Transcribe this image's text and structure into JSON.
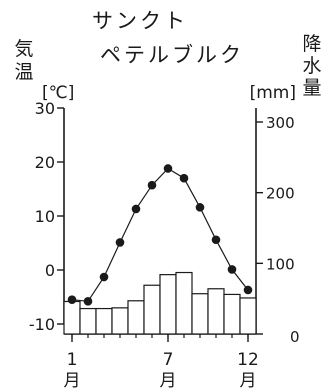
{
  "chart_data": {
    "type": "bar+line",
    "title_lines": [
      "サンクト",
      "ペテルブルク"
    ],
    "left_axis_label_chars": [
      "気",
      "温"
    ],
    "left_axis_unit": "[℃]",
    "right_axis_label_chars": [
      "降",
      "水",
      "量"
    ],
    "right_axis_unit": "[mm]",
    "months": [
      1,
      2,
      3,
      4,
      5,
      6,
      7,
      8,
      9,
      10,
      11,
      12
    ],
    "x_tick_labels": [
      {
        "month": 1,
        "label": "1"
      },
      {
        "month": 7,
        "label": "7"
      },
      {
        "month": 12,
        "label": "12"
      }
    ],
    "x_unit_char": "月",
    "temperature": {
      "values": [
        -5.5,
        -5.8,
        -1.3,
        5.1,
        11.3,
        15.7,
        18.8,
        17.0,
        11.6,
        5.6,
        0.1,
        -3.7
      ],
      "ylim": [
        -10,
        30
      ],
      "ticks": [
        -10,
        0,
        10,
        20,
        30
      ]
    },
    "precipitation": {
      "values": [
        46,
        36,
        36,
        37,
        47,
        69,
        84,
        87,
        57,
        64,
        56,
        51
      ],
      "ylim": [
        0,
        300
      ],
      "ticks": [
        0,
        100,
        200,
        300
      ]
    },
    "grid": false
  }
}
